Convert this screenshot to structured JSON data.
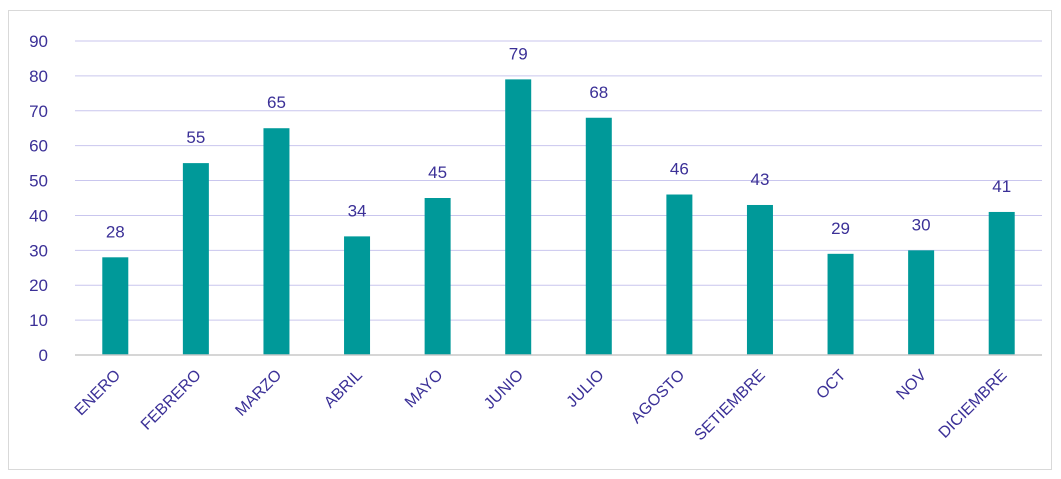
{
  "chart_data": {
    "type": "bar",
    "categories": [
      "ENERO",
      "FEBRERO",
      "MARZO",
      "ABRIL",
      "MAYO",
      "JUNIO",
      "JULIO",
      "AGOSTO",
      "SETIEMBRE",
      "OCT",
      "NOV",
      "DICIEMBRE"
    ],
    "values": [
      28,
      55,
      65,
      34,
      45,
      79,
      68,
      46,
      43,
      29,
      30,
      41
    ],
    "yticks": [
      "0",
      "10",
      "20",
      "30",
      "40",
      "50",
      "60",
      "70",
      "80",
      "90"
    ],
    "ylim": [
      0,
      90
    ],
    "grid": true,
    "legend": "none",
    "data_labels": true,
    "colors": {
      "bar": "#009999",
      "text": "#3b3097",
      "grid": "#c9c6ee",
      "axis": "#c8c8c8",
      "frame": "#d9d9d9"
    }
  }
}
